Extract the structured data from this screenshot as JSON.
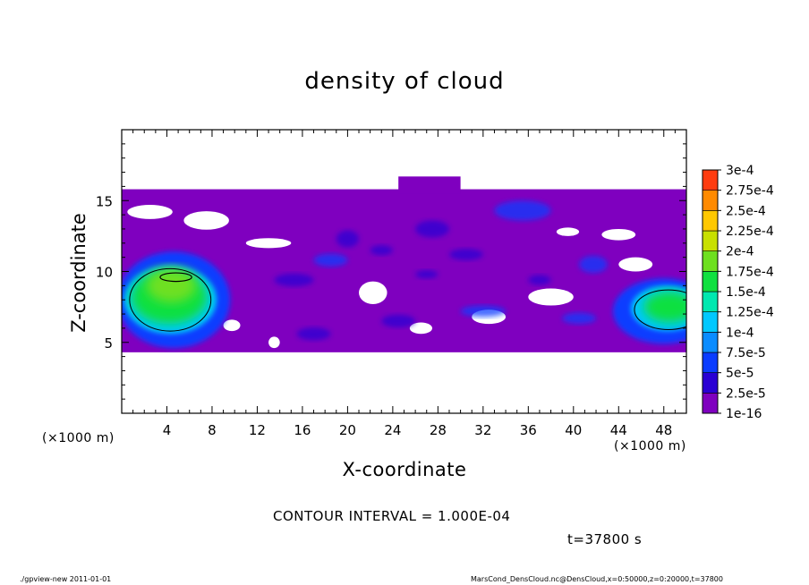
{
  "chart_data": {
    "type": "heatmap",
    "title": "density of cloud",
    "xlabel": "X-coordinate",
    "ylabel": "Z-coordinate",
    "x_unit_label": "(×1000 m)",
    "xlim": [
      0,
      50
    ],
    "ylim": [
      0,
      20
    ],
    "x_ticks": [
      4,
      8,
      12,
      16,
      20,
      24,
      28,
      32,
      36,
      40,
      44,
      48
    ],
    "x_tick_labels": [
      "4",
      "8",
      "12",
      "16",
      "20",
      "24",
      "28",
      "32",
      "36",
      "40",
      "44",
      "48"
    ],
    "y_ticks": [
      5,
      10,
      15
    ],
    "y_tick_labels": [
      "5",
      "10",
      "15"
    ],
    "colorbar": {
      "levels": [
        "1e-16",
        "2.5e-5",
        "5e-5",
        "7.5e-5",
        "1e-4",
        "1.25e-4",
        "1.5e-4",
        "1.75e-4",
        "2e-4",
        "2.25e-4",
        "2.5e-4",
        "2.75e-4",
        "3e-4"
      ],
      "colors": [
        "#7f00bf",
        "#2a00d4",
        "#0a3cff",
        "#0a8cff",
        "#00c8ff",
        "#00e8b0",
        "#10e040",
        "#6ee020",
        "#c8e000",
        "#ffc800",
        "#ff8a00",
        "#ff3c10",
        "#ff8080"
      ]
    },
    "annotations": {
      "contour_interval": "CONTOUR INTERVAL = 1.000E-04",
      "time": "t=37800 s"
    }
  },
  "footer": {
    "left": "./gpview-new   2011-01-01",
    "right": "MarsCond_DensCloud.nc@DensCloud,x=0:50000,z=0:20000,t=37800"
  }
}
